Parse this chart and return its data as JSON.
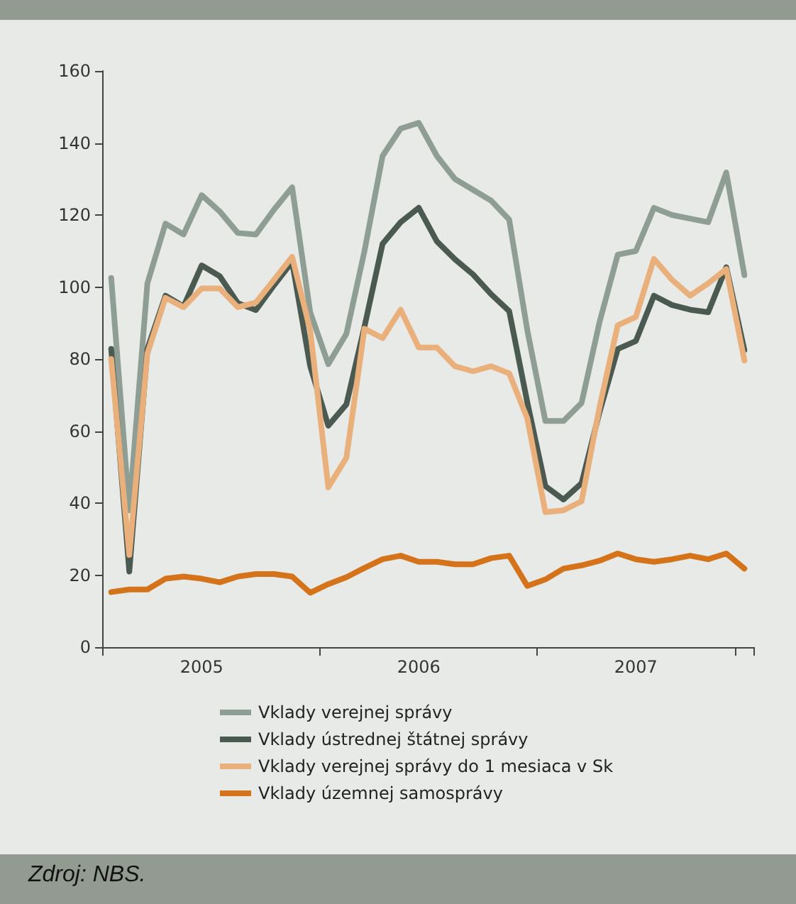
{
  "chart_data": {
    "type": "line",
    "categories": [
      null,
      null,
      null,
      null,
      null,
      "2005",
      null,
      null,
      null,
      null,
      null,
      null,
      null,
      null,
      null,
      null,
      null,
      "2006",
      null,
      null,
      null,
      null,
      null,
      null,
      null,
      null,
      null,
      null,
      null,
      "2007",
      null,
      null,
      null,
      null,
      null,
      null
    ],
    "ylim": [
      0,
      160
    ],
    "yticks": [
      0,
      20,
      40,
      60,
      80,
      100,
      120,
      140,
      160
    ],
    "grid": false,
    "legend": "bottom",
    "marker": "none",
    "line_style": "solid",
    "series": [
      {
        "name": "Vklady verejnej správy",
        "color": "#8f9e94",
        "values": [
          102.5,
          38,
          101,
          117.6,
          114.6,
          125.5,
          121,
          115,
          114.6,
          121.5,
          127.7,
          93,
          78.6,
          87,
          110,
          136.4,
          144,
          145.6,
          136.4,
          130,
          127,
          124,
          118.7,
          88,
          62.8,
          62.8,
          67.8,
          90.4,
          109,
          110,
          122,
          120,
          119,
          118,
          131.8,
          103.3
        ]
      },
      {
        "name": "Vklady ústrednej štátnej správy",
        "color": "#4a5a50",
        "values": [
          82.8,
          21,
          82.8,
          97.6,
          94.6,
          106,
          103,
          95.5,
          93.6,
          100.5,
          107,
          78,
          61.5,
          67.4,
          89,
          112,
          118,
          122,
          112.7,
          107.7,
          103.5,
          98,
          93.3,
          68,
          44.7,
          41,
          45.5,
          65.4,
          82.8,
          85,
          97.6,
          95,
          93.7,
          93,
          105.5,
          82.5
        ]
      },
      {
        "name": "Vklady verejnej správy do 1 mesiaca v Sk",
        "color": "#eab07c",
        "values": [
          80,
          25.6,
          81.5,
          97,
          94.4,
          99.6,
          99.6,
          94.4,
          95.7,
          102,
          108.4,
          88,
          44.4,
          52.6,
          88.4,
          85.8,
          93.7,
          83.2,
          83.2,
          78,
          76.6,
          78,
          76,
          63.5,
          37.5,
          38,
          40.5,
          66.8,
          89.4,
          91.7,
          107.8,
          102,
          97.6,
          101,
          105,
          79.6
        ]
      },
      {
        "name": "Vklady územnej samosprávy",
        "color": "#d4731a",
        "values": [
          15.3,
          16,
          16,
          19,
          19.6,
          19,
          18,
          19.6,
          20.3,
          20.3,
          19.6,
          15.1,
          17.5,
          19.4,
          22,
          24.4,
          25.4,
          23.7,
          23.7,
          23,
          23,
          24.7,
          25.4,
          17,
          18.8,
          21.8,
          22.7,
          24,
          26,
          24.4,
          23.7,
          24.4,
          25.4,
          24.4,
          26,
          21.8
        ]
      }
    ],
    "annotations": [
      "Zdroj: NBS."
    ]
  }
}
